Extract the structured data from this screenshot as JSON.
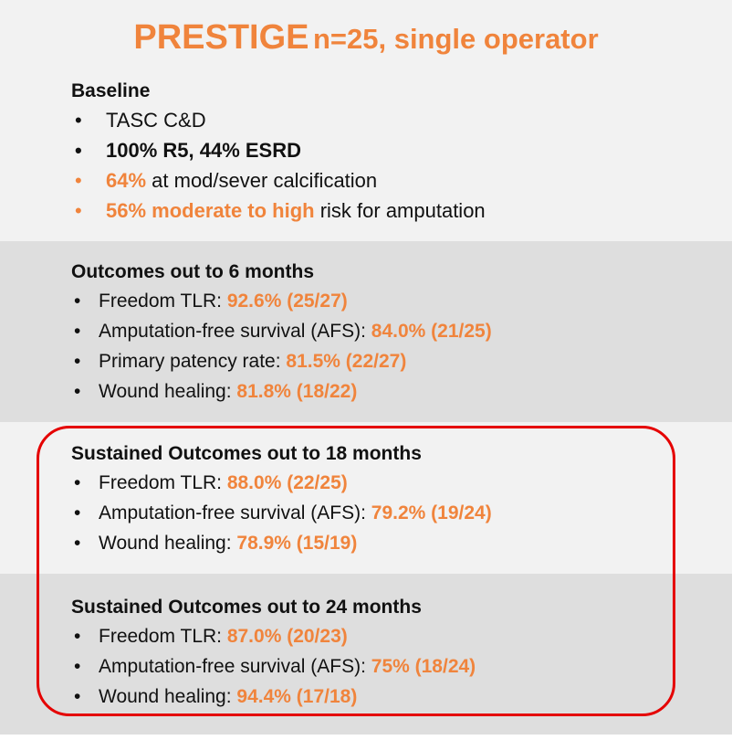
{
  "title": {
    "main": "PRESTIGE",
    "sub": "n=25, single operator"
  },
  "baseline": {
    "heading": "Baseline",
    "items": [
      {
        "text": "TASC C&D"
      },
      {
        "text": "100% R5, 44% ESRD"
      },
      {
        "highlight": "64%",
        "rest": " at mod/sever calcification"
      },
      {
        "highlight": "56% moderate to high",
        "rest": " risk for amputation"
      }
    ]
  },
  "sections": [
    {
      "heading": "Outcomes out to 6 months",
      "items": [
        {
          "label": "Freedom TLR: ",
          "value": "92.6% (25/27)"
        },
        {
          "label": "Amputation-free survival (AFS): ",
          "value": "84.0% (21/25)"
        },
        {
          "label": "Primary patency rate: ",
          "value": "81.5% (22/27)"
        },
        {
          "label": "Wound healing: ",
          "value": "81.8% (18/22)"
        }
      ]
    },
    {
      "heading": "Sustained Outcomes out to 18 months",
      "items": [
        {
          "label": "Freedom TLR: ",
          "value": "88.0% (22/25)"
        },
        {
          "label": "Amputation-free survival (AFS): ",
          "value": "79.2% (19/24)"
        },
        {
          "label": "Wound healing: ",
          "value": "78.9% (15/19)"
        }
      ]
    },
    {
      "heading": "Sustained Outcomes out to 24 months",
      "items": [
        {
          "label": "Freedom TLR: ",
          "value": "87.0% (20/23)"
        },
        {
          "label": "Amputation-free survival (AFS): ",
          "value": "75% (18/24)"
        },
        {
          "label": "Wound healing: ",
          "value": "94.4% (17/18)"
        }
      ]
    }
  ],
  "colors": {
    "accent": "#f0843c",
    "highlight_border": "#e50000",
    "band_light": "#f2f2f2",
    "band_dark": "#dedede"
  }
}
